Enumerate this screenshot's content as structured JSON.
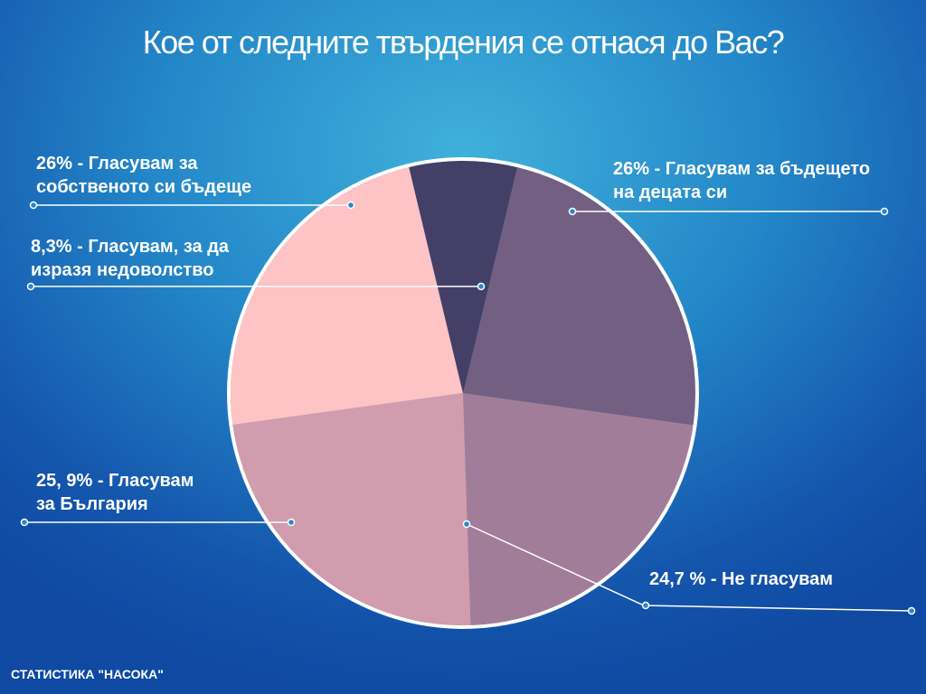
{
  "chart_data": {
    "type": "pie",
    "title": "Кое от следните твърдения се отнася до Вас?",
    "slices": [
      {
        "label": "26% - Гласувам за бъдещето на децата си",
        "value": 26,
        "color": "#735f82"
      },
      {
        "label": "24,7 % - Не гласувам",
        "value": 24.7,
        "color": "#a27d99"
      },
      {
        "label": "25, 9% - Гласувам за България",
        "value": 25.9,
        "color": "#d19cae"
      },
      {
        "label": "26% - Гласувам за собственото си бъдеще",
        "value": 26,
        "color": "#fdc3c5"
      },
      {
        "label": "8,3% - Гласувам, за да изразя недоволство",
        "value": 8.3,
        "color": "#433f66"
      }
    ],
    "legend": "none"
  },
  "labels": {
    "future_children_l1": "26%  - Гласувам за бъдещето",
    "future_children_l2": "на децата си",
    "not_voting": "24,7 % - Не гласувам",
    "bulgaria_l1": "25, 9% - Гласувам",
    "bulgaria_l2": "за България",
    "own_future_l1": "26%  - Гласувам за",
    "own_future_l2": "собственото си бъдеще",
    "discontent_l1": "8,3%  - Гласувам, за да",
    "discontent_l2": "изразя недоволство"
  },
  "footer": "СТАТИСТИКА \"НАСОКА\""
}
